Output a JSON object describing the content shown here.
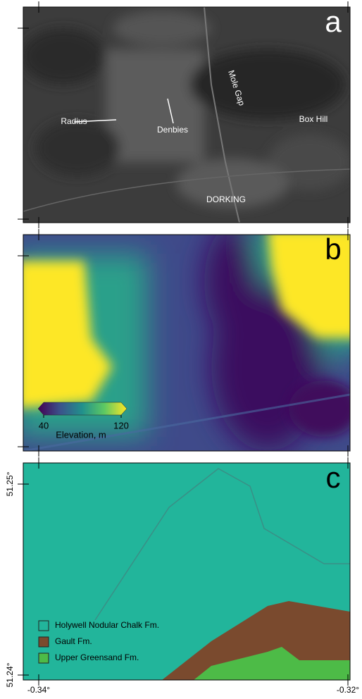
{
  "panels": [
    {
      "letter": "a",
      "places": [
        "Radius",
        "Denbies",
        "Mole Gap",
        "Box Hill",
        "DORKING"
      ]
    },
    {
      "letter": "b",
      "colorbar": {
        "ticks": [
          40,
          120
        ],
        "label": "Elevation, m"
      }
    },
    {
      "letter": "c",
      "legend": [
        {
          "name": "Holywell Nodular Chalk Fm.",
          "color": "#22b59b"
        },
        {
          "name": "Gault Fm.",
          "color": "#7a4a2e"
        },
        {
          "name": "Upper Greensand Fm.",
          "color": "#4dbb47"
        }
      ]
    }
  ],
  "axes": {
    "yticks": [
      {
        "value": 51.25,
        "label": "51.25°"
      },
      {
        "value": 51.24,
        "label": "51.24°"
      }
    ],
    "xticks": [
      {
        "value": -0.34,
        "label": "-0.34°"
      },
      {
        "value": -0.32,
        "label": "-0.32°"
      }
    ]
  }
}
